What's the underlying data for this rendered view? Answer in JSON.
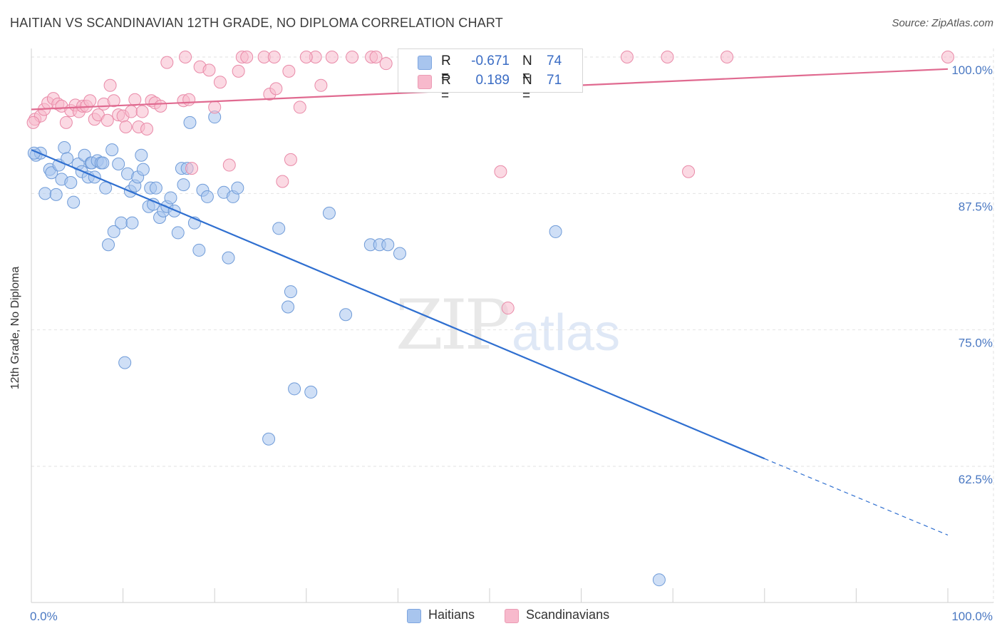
{
  "title": "HAITIAN VS SCANDINAVIAN 12TH GRADE, NO DIPLOMA CORRELATION CHART",
  "source": "Source: ZipAtlas.com",
  "watermark": {
    "zip": "ZIP",
    "atlas": "atlas"
  },
  "legend_top": {
    "rows": [
      {
        "r_label": "R =",
        "r_value": "-0.671",
        "n_label": "N =",
        "n_value": "74",
        "color": "#a8c5ee"
      },
      {
        "r_label": "R =",
        "r_value": "0.189",
        "n_label": "N =",
        "n_value": "71",
        "color": "#f7b9cc"
      }
    ]
  },
  "legend_bottom": [
    {
      "label": "Haitians",
      "color": "#a8c5ee"
    },
    {
      "label": "Scandinavians",
      "color": "#f7b9cc"
    }
  ],
  "chart_data": {
    "type": "scatter",
    "title": "HAITIAN VS SCANDINAVIAN 12TH GRADE, NO DIPLOMA CORRELATION CHART",
    "xlabel": "",
    "ylabel": "12th Grade, No Diploma",
    "xlim": [
      0,
      100
    ],
    "ylim": [
      52,
      102
    ],
    "x_tick_labels": [
      {
        "value": 0,
        "label": "0.0%"
      },
      {
        "value": 100,
        "label": "100.0%"
      }
    ],
    "y_tick_labels": [
      {
        "value": 100,
        "label": "100.0%"
      },
      {
        "value": 87.5,
        "label": "87.5%"
      },
      {
        "value": 75,
        "label": "75.0%"
      },
      {
        "value": 62.5,
        "label": "62.5%"
      }
    ],
    "grid": true,
    "series": [
      {
        "name": "Haitians",
        "color": "#a8c5ee",
        "stroke": "#6f9bd8",
        "trend_color": "#2f6fd0",
        "trend": {
          "x0": 0,
          "y0": 91.5,
          "x1": 80,
          "y1": 63.2,
          "dash_to_x": 100,
          "dash_to_y": 56.2
        },
        "points": [
          [
            0.5,
            91.0
          ],
          [
            1.0,
            91.2
          ],
          [
            1.5,
            87.5
          ],
          [
            2.0,
            89.7
          ],
          [
            2.2,
            89.4
          ],
          [
            2.7,
            87.4
          ],
          [
            3.0,
            90.1
          ],
          [
            3.3,
            88.8
          ],
          [
            3.6,
            91.7
          ],
          [
            3.9,
            90.7
          ],
          [
            4.3,
            88.5
          ],
          [
            4.6,
            86.7
          ],
          [
            5.1,
            90.2
          ],
          [
            5.5,
            89.5
          ],
          [
            5.8,
            91.0
          ],
          [
            6.2,
            89.0
          ],
          [
            6.5,
            90.3
          ],
          [
            6.6,
            90.3
          ],
          [
            6.9,
            89.0
          ],
          [
            7.2,
            90.5
          ],
          [
            7.6,
            90.3
          ],
          [
            7.8,
            90.3
          ],
          [
            8.1,
            88.0
          ],
          [
            8.4,
            82.8
          ],
          [
            8.8,
            91.5
          ],
          [
            9.0,
            84.0
          ],
          [
            9.5,
            90.2
          ],
          [
            9.8,
            84.8
          ],
          [
            10.2,
            72.0
          ],
          [
            10.5,
            89.3
          ],
          [
            10.8,
            87.7
          ],
          [
            11.0,
            84.8
          ],
          [
            11.3,
            88.2
          ],
          [
            11.6,
            89.0
          ],
          [
            12.0,
            91.0
          ],
          [
            12.2,
            89.7
          ],
          [
            12.8,
            86.3
          ],
          [
            13.0,
            88.0
          ],
          [
            13.3,
            86.5
          ],
          [
            13.6,
            88.0
          ],
          [
            14.0,
            85.3
          ],
          [
            14.4,
            85.9
          ],
          [
            14.8,
            86.3
          ],
          [
            15.2,
            87.1
          ],
          [
            15.6,
            85.9
          ],
          [
            16.0,
            83.9
          ],
          [
            16.4,
            89.8
          ],
          [
            16.6,
            88.3
          ],
          [
            17.0,
            89.8
          ],
          [
            17.3,
            94.0
          ],
          [
            17.8,
            84.8
          ],
          [
            18.3,
            82.3
          ],
          [
            18.7,
            87.8
          ],
          [
            19.2,
            87.2
          ],
          [
            20.0,
            94.5
          ],
          [
            21.0,
            87.6
          ],
          [
            21.5,
            81.6
          ],
          [
            22.0,
            87.2
          ],
          [
            22.5,
            88.0
          ],
          [
            25.9,
            65.0
          ],
          [
            27.0,
            84.3
          ],
          [
            28.0,
            77.1
          ],
          [
            28.3,
            78.5
          ],
          [
            28.7,
            69.6
          ],
          [
            30.5,
            69.3
          ],
          [
            32.5,
            85.7
          ],
          [
            34.3,
            76.4
          ],
          [
            37.0,
            82.8
          ],
          [
            38.0,
            82.8
          ],
          [
            38.9,
            82.8
          ],
          [
            40.2,
            82.0
          ],
          [
            57.2,
            84.0
          ],
          [
            68.5,
            52.1
          ],
          [
            0.3,
            91.2
          ]
        ]
      },
      {
        "name": "Scandinavians",
        "color": "#f7b9cc",
        "stroke": "#e98aa8",
        "trend_color": "#e06a90",
        "trend": {
          "x0": 0,
          "y0": 95.2,
          "x1": 100,
          "y1": 98.9
        },
        "points": [
          [
            0.4,
            94.3
          ],
          [
            1.0,
            94.6
          ],
          [
            1.4,
            95.2
          ],
          [
            1.8,
            95.8
          ],
          [
            2.4,
            96.2
          ],
          [
            2.9,
            95.7
          ],
          [
            3.3,
            95.5
          ],
          [
            3.8,
            94.0
          ],
          [
            4.3,
            95.1
          ],
          [
            4.8,
            95.6
          ],
          [
            5.2,
            95.0
          ],
          [
            5.6,
            95.5
          ],
          [
            6.0,
            95.5
          ],
          [
            6.4,
            96.0
          ],
          [
            6.9,
            94.3
          ],
          [
            7.3,
            94.7
          ],
          [
            7.9,
            95.7
          ],
          [
            8.3,
            94.2
          ],
          [
            8.6,
            97.4
          ],
          [
            9.0,
            96.0
          ],
          [
            9.5,
            94.7
          ],
          [
            10.0,
            94.6
          ],
          [
            10.3,
            93.6
          ],
          [
            10.9,
            95.0
          ],
          [
            11.3,
            96.1
          ],
          [
            11.7,
            93.6
          ],
          [
            12.1,
            95.0
          ],
          [
            12.6,
            93.4
          ],
          [
            13.1,
            96.0
          ],
          [
            13.5,
            95.8
          ],
          [
            14.1,
            95.5
          ],
          [
            14.8,
            99.5
          ],
          [
            16.6,
            96.0
          ],
          [
            17.2,
            96.1
          ],
          [
            17.5,
            89.8
          ],
          [
            18.4,
            99.1
          ],
          [
            19.4,
            98.8
          ],
          [
            20.0,
            95.4
          ],
          [
            20.6,
            97.7
          ],
          [
            21.6,
            90.1
          ],
          [
            22.6,
            98.7
          ],
          [
            23.0,
            100.0
          ],
          [
            23.5,
            100.0
          ],
          [
            25.4,
            100.0
          ],
          [
            26.0,
            96.6
          ],
          [
            26.7,
            97.1
          ],
          [
            27.4,
            88.6
          ],
          [
            28.1,
            98.7
          ],
          [
            28.3,
            90.6
          ],
          [
            29.3,
            95.4
          ],
          [
            31.0,
            100.0
          ],
          [
            31.6,
            97.4
          ],
          [
            32.8,
            100.0
          ],
          [
            35.0,
            100.0
          ],
          [
            37.1,
            100.0
          ],
          [
            37.6,
            100.0
          ],
          [
            38.7,
            99.4
          ],
          [
            41.8,
            100.0
          ],
          [
            46.4,
            100.0
          ],
          [
            47.0,
            100.0
          ],
          [
            51.2,
            89.5
          ],
          [
            52.0,
            77.0
          ],
          [
            65.0,
            100.0
          ],
          [
            69.4,
            100.0
          ],
          [
            71.7,
            89.5
          ],
          [
            75.9,
            100.0
          ],
          [
            100.0,
            100.0
          ],
          [
            30.0,
            100.0
          ],
          [
            26.5,
            100.0
          ],
          [
            16.8,
            100.0
          ],
          [
            0.2,
            94.0
          ]
        ]
      }
    ]
  }
}
